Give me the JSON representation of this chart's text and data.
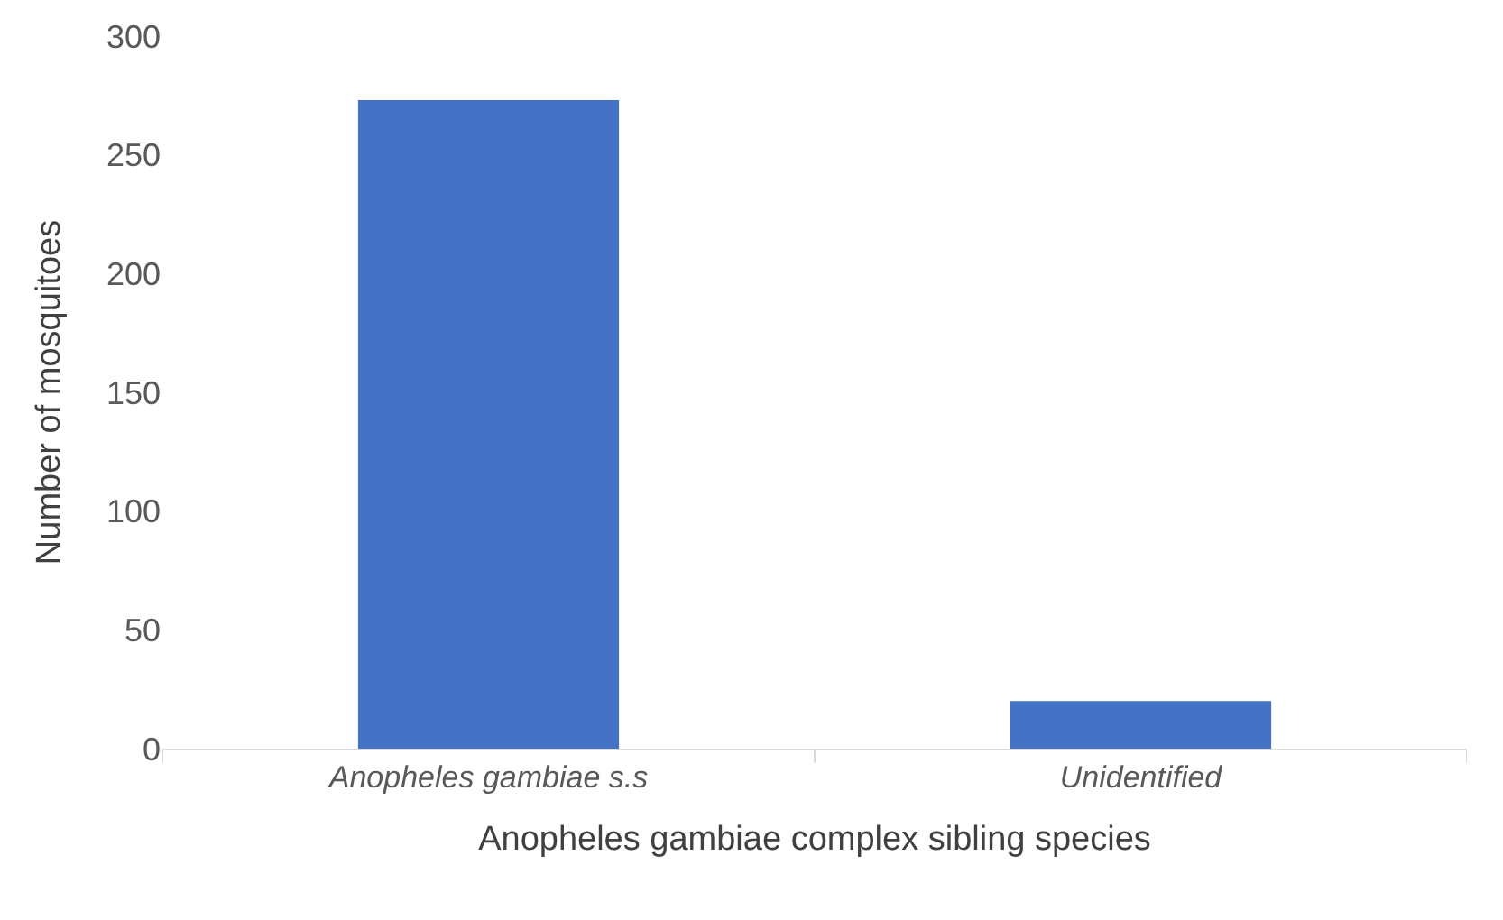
{
  "chart_data": {
    "type": "bar",
    "categories": [
      "Anopheles gambiae s.s",
      "Unidentified"
    ],
    "values": [
      273,
      20
    ],
    "color": "#4472c4",
    "xlabel": "Anopheles gambiae complex sibling species",
    "ylabel": "Number of mosquitoes",
    "ylim": [
      0,
      300
    ],
    "yticks": [
      0,
      50,
      100,
      150,
      200,
      250,
      300
    ],
    "grid": false,
    "legend": false
  }
}
